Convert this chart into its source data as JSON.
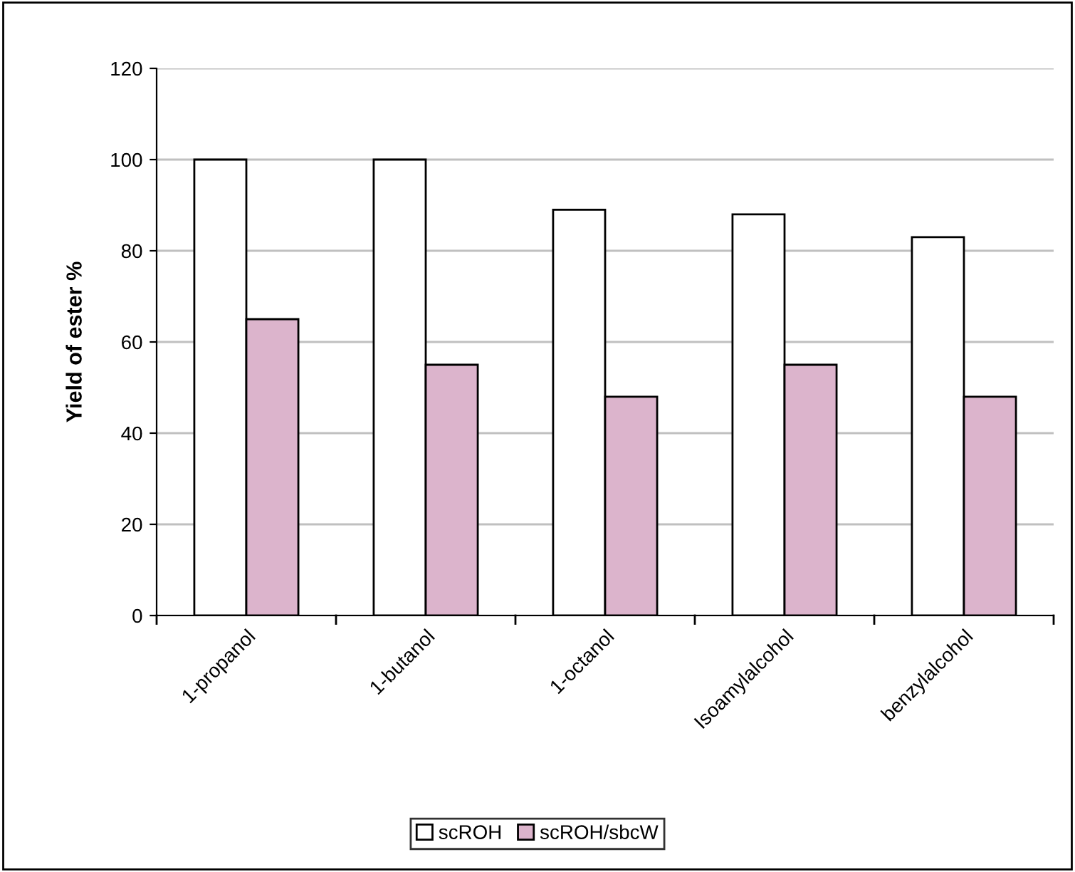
{
  "chart_data": {
    "type": "bar",
    "ylabel": "Yield of ester %",
    "categories": [
      "1-propanol",
      "1-butanol",
      "1-octanol",
      "Isoamylalcohol",
      "benzylalcohol"
    ],
    "series": [
      {
        "name": "scROH",
        "color": "#ffffff",
        "values": [
          100,
          100,
          89,
          88,
          83
        ]
      },
      {
        "name": "scROH/sbcW",
        "color": "#dcb4cc",
        "values": [
          65,
          55,
          48,
          55,
          48
        ]
      }
    ],
    "ylim": [
      0,
      120
    ],
    "yticks": [
      0,
      20,
      40,
      60,
      80,
      100,
      120
    ],
    "grid": "y",
    "legend": "bottom"
  }
}
